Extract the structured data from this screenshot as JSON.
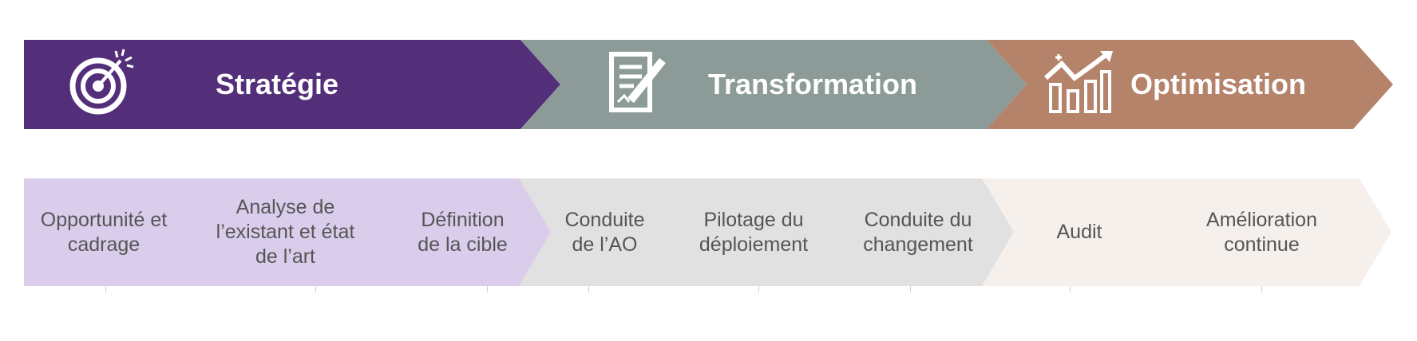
{
  "phases": [
    {
      "label": "Stratégie",
      "color": "#532f7a",
      "icon": "target-icon"
    },
    {
      "label": "Transformation",
      "color": "#8c9b98",
      "icon": "document-pen-icon"
    },
    {
      "label": "Optimisation",
      "color": "#b5826a",
      "icon": "growth-chart-icon"
    }
  ],
  "steps": [
    {
      "label": "Opportunité et\ncadrage",
      "color": "#dacdec"
    },
    {
      "label": "Analyse de\nl’existant et état\nde l’art",
      "color": "#dacdec"
    },
    {
      "label": "Définition\nde la cible",
      "color": "#dacdec"
    },
    {
      "label": "Conduite\nde l’AO",
      "color": "#e1e1e1"
    },
    {
      "label": "Pilotage du\ndéploiement",
      "color": "#e1e1e1"
    },
    {
      "label": "Conduite du\nchangement",
      "color": "#e1e1e1"
    },
    {
      "label": "Audit",
      "color": "#f6f0ed"
    },
    {
      "label": "Amélioration\ncontinue",
      "color": "#f6f0ed"
    }
  ]
}
